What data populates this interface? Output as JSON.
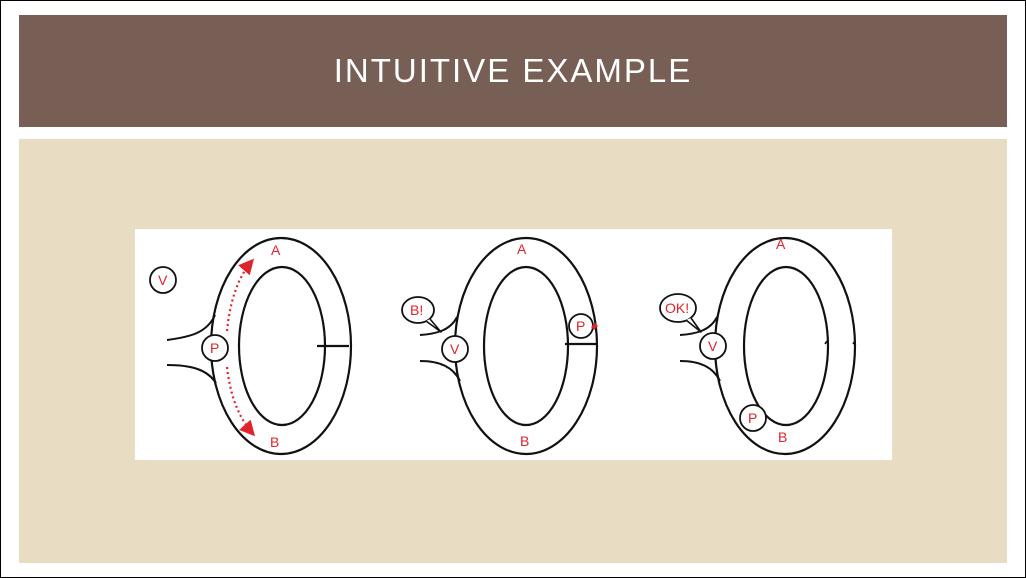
{
  "slide": {
    "title": "INTUITIVE EXAMPLE"
  },
  "colors": {
    "title_bar": "#775f55",
    "content_bg": "#e8dcc2",
    "label_red": "#e0242b"
  },
  "panels": [
    {
      "top_label": "A",
      "bottom_label": "B",
      "free_circle_label": "V",
      "entrance_circle_label": "P"
    },
    {
      "top_label": "A",
      "bottom_label": "B",
      "speech_bubble": "B!",
      "entrance_circle_label": "V",
      "door_circle_label": "P"
    },
    {
      "top_label": "A",
      "bottom_label": "B",
      "speech_bubble": "OK!",
      "entrance_circle_label": "V",
      "inside_circle_label": "P"
    }
  ]
}
